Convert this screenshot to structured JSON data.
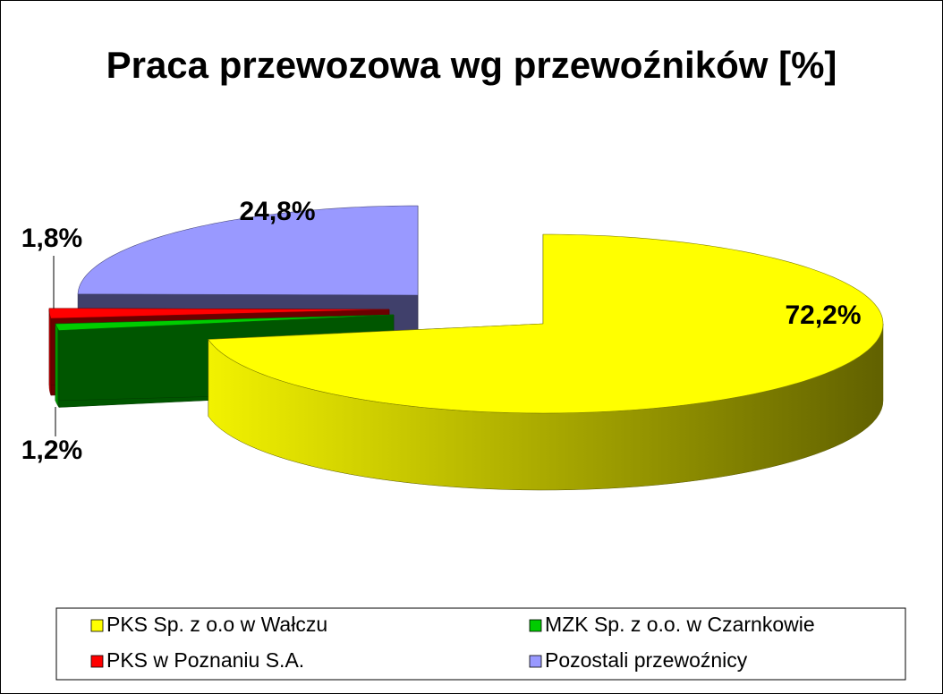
{
  "chart_data": {
    "type": "pie",
    "three_d": true,
    "title": "Praca przewozowa wg przewoźników [%]",
    "categories": [
      "PKS Sp. z o.o w Wałczu",
      "MZK Sp. z o.o. w Czarnkowie",
      "PKS w Poznaniu S.A.",
      "Pozostali przewoźnicy"
    ],
    "values": [
      72.2,
      1.2,
      1.8,
      24.8
    ],
    "value_labels": [
      "72,2%",
      "1,2%",
      "1,8%",
      "24,8%"
    ],
    "colors": [
      "#ffff00",
      "#00cc00",
      "#ff0000",
      "#9999ff"
    ],
    "legend": "bottom"
  }
}
